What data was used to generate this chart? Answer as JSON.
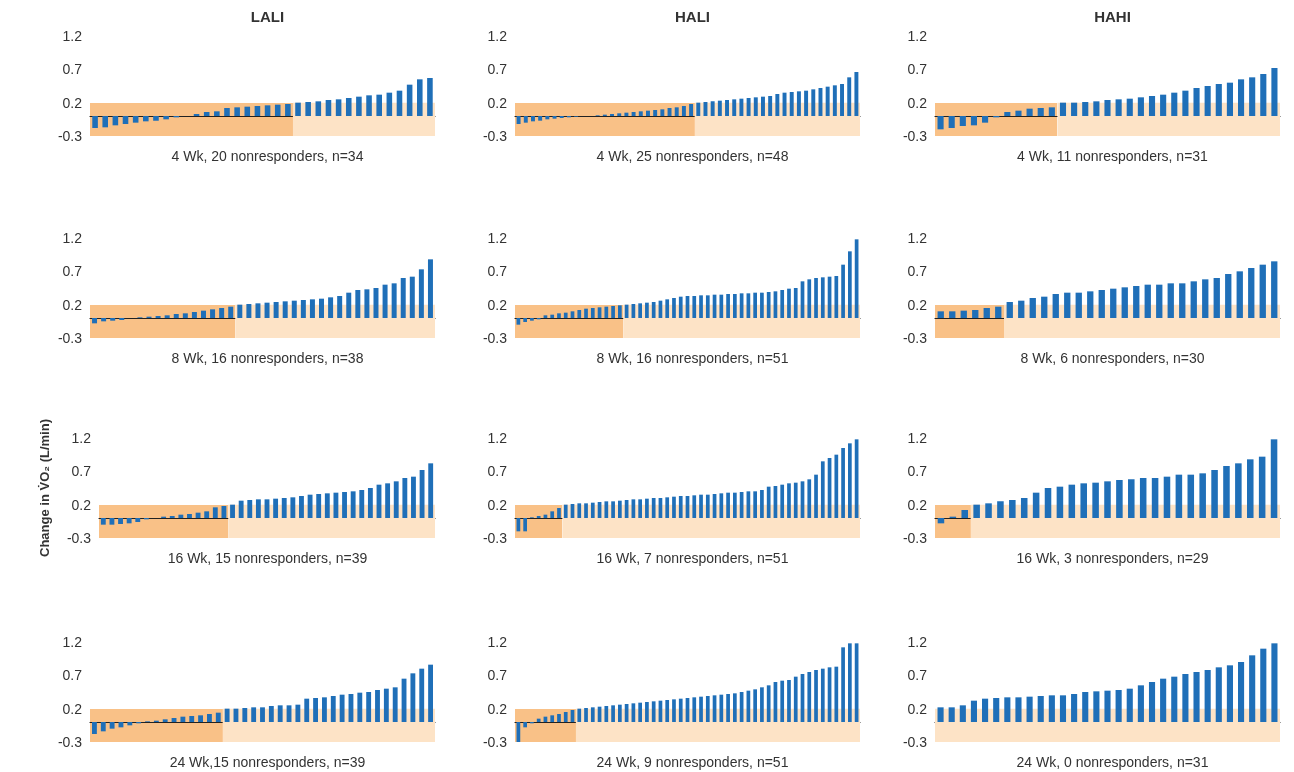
{
  "chart_data": [
    {
      "type": "bar",
      "title": "LALI",
      "xlabel": "4 Wk, 20 nonresponders, n=34",
      "categories": [
        null,
        null,
        null,
        null,
        null,
        null,
        null,
        null,
        null,
        null,
        null,
        null,
        null,
        null,
        null,
        null,
        null,
        null,
        null,
        null,
        null,
        null,
        null,
        null,
        null,
        null,
        null,
        null,
        null,
        null,
        null,
        null,
        null,
        null
      ],
      "ylim": [
        -0.3,
        1.2
      ],
      "yticks": [
        -0.3,
        0.2,
        0.7,
        1.2
      ],
      "tick_labels": "y",
      "grid": false,
      "color": "#1f6fb8",
      "values": [
        -0.18,
        -0.17,
        -0.14,
        -0.12,
        -0.1,
        -0.08,
        -0.07,
        -0.05,
        -0.02,
        0,
        0.03,
        0.06,
        0.07,
        0.12,
        0.13,
        0.14,
        0.15,
        0.16,
        0.17,
        0.18,
        0.2,
        0.21,
        0.22,
        0.24,
        0.25,
        0.27,
        0.29,
        0.31,
        0.32,
        0.35,
        0.38,
        0.47,
        0.55,
        0.57
      ],
      "bands": [
        {
          "axis": "y",
          "from": -0.3,
          "to": 0.2,
          "color": "#fde3c6"
        }
      ]
    },
    {
      "type": "bar",
      "title": "HALI",
      "xlabel": "4 Wk, 25 nonresponders, n=48",
      "categories": [
        null,
        null,
        null,
        null,
        null,
        null,
        null,
        null,
        null,
        null,
        null,
        null,
        null,
        null,
        null,
        null,
        null,
        null,
        null,
        null,
        null,
        null,
        null,
        null,
        null,
        null,
        null,
        null,
        null,
        null,
        null,
        null,
        null,
        null,
        null,
        null,
        null,
        null,
        null,
        null,
        null,
        null,
        null,
        null,
        null,
        null,
        null,
        null
      ],
      "ylim": [
        -0.3,
        1.2
      ],
      "yticks": [
        -0.3,
        0.2,
        0.7,
        1.2
      ],
      "tick_labels": "y",
      "grid": false,
      "color": "#1f6fb8",
      "values": [
        -0.12,
        -0.1,
        -0.08,
        -0.07,
        -0.05,
        -0.04,
        -0.03,
        -0.02,
        -0.01,
        0,
        0,
        0.01,
        0.02,
        0.03,
        0.04,
        0.05,
        0.06,
        0.07,
        0.08,
        0.09,
        0.1,
        0.12,
        0.13,
        0.15,
        0.18,
        0.2,
        0.21,
        0.22,
        0.23,
        0.24,
        0.25,
        0.26,
        0.27,
        0.28,
        0.29,
        0.3,
        0.33,
        0.35,
        0.36,
        0.37,
        0.38,
        0.4,
        0.42,
        0.44,
        0.46,
        0.48,
        0.58,
        0.66
      ],
      "bands": [
        {
          "axis": "y",
          "from": -0.3,
          "to": 0.2,
          "color": "#fde3c6"
        }
      ]
    },
    {
      "type": "bar",
      "title": "HAHI",
      "xlabel": "4 Wk, 11 nonresponders, n=31",
      "categories": [
        null,
        null,
        null,
        null,
        null,
        null,
        null,
        null,
        null,
        null,
        null,
        null,
        null,
        null,
        null,
        null,
        null,
        null,
        null,
        null,
        null,
        null,
        null,
        null,
        null,
        null,
        null,
        null,
        null,
        null,
        null
      ],
      "ylim": [
        -0.3,
        1.2
      ],
      "yticks": [
        -0.3,
        0.2,
        0.7,
        1.2
      ],
      "tick_labels": "y",
      "grid": false,
      "color": "#1f6fb8",
      "values": [
        -0.2,
        -0.18,
        -0.15,
        -0.14,
        -0.1,
        -0.02,
        0.06,
        0.08,
        0.11,
        0.12,
        0.13,
        0.2,
        0.2,
        0.21,
        0.22,
        0.24,
        0.25,
        0.26,
        0.28,
        0.3,
        0.32,
        0.35,
        0.38,
        0.42,
        0.45,
        0.48,
        0.5,
        0.55,
        0.58,
        0.63,
        0.72
      ],
      "bands": [
        {
          "axis": "y",
          "from": -0.3,
          "to": 0.2,
          "color": "#fde3c6"
        }
      ]
    },
    {
      "type": "bar",
      "xlabel": "8 Wk, 16 nonresponders, n=38",
      "categories": [
        null,
        null,
        null,
        null,
        null,
        null,
        null,
        null,
        null,
        null,
        null,
        null,
        null,
        null,
        null,
        null,
        null,
        null,
        null,
        null,
        null,
        null,
        null,
        null,
        null,
        null,
        null,
        null,
        null,
        null,
        null,
        null,
        null,
        null,
        null,
        null,
        null,
        null
      ],
      "ylim": [
        -0.3,
        1.2
      ],
      "yticks": [
        -0.3,
        0.2,
        0.7,
        1.2
      ],
      "tick_labels": "y",
      "grid": false,
      "color": "#1f6fb8",
      "values": [
        -0.08,
        -0.05,
        -0.04,
        -0.03,
        0,
        0.01,
        0.02,
        0.03,
        0.04,
        0.06,
        0.07,
        0.09,
        0.11,
        0.13,
        0.15,
        0.17,
        0.2,
        0.21,
        0.22,
        0.23,
        0.24,
        0.25,
        0.26,
        0.27,
        0.28,
        0.29,
        0.31,
        0.33,
        0.38,
        0.42,
        0.43,
        0.45,
        0.5,
        0.52,
        0.6,
        0.62,
        0.73,
        0.88
      ],
      "bands": [
        {
          "axis": "y",
          "from": -0.3,
          "to": 0.2,
          "color": "#fde3c6"
        }
      ]
    },
    {
      "type": "bar",
      "xlabel": "8 Wk, 16 nonresponders, n=51",
      "categories": [
        null,
        null,
        null,
        null,
        null,
        null,
        null,
        null,
        null,
        null,
        null,
        null,
        null,
        null,
        null,
        null,
        null,
        null,
        null,
        null,
        null,
        null,
        null,
        null,
        null,
        null,
        null,
        null,
        null,
        null,
        null,
        null,
        null,
        null,
        null,
        null,
        null,
        null,
        null,
        null,
        null,
        null,
        null,
        null,
        null,
        null,
        null,
        null,
        null,
        null,
        null
      ],
      "ylim": [
        -0.3,
        1.2
      ],
      "yticks": [
        -0.3,
        0.2,
        0.7,
        1.2
      ],
      "tick_labels": "y",
      "grid": false,
      "color": "#1f6fb8",
      "values": [
        -0.1,
        -0.06,
        -0.04,
        -0.02,
        0.04,
        0.05,
        0.07,
        0.08,
        0.1,
        0.12,
        0.14,
        0.15,
        0.16,
        0.17,
        0.18,
        0.19,
        0.2,
        0.21,
        0.22,
        0.23,
        0.24,
        0.26,
        0.28,
        0.3,
        0.32,
        0.33,
        0.33,
        0.34,
        0.34,
        0.35,
        0.35,
        0.36,
        0.36,
        0.37,
        0.37,
        0.38,
        0.38,
        0.39,
        0.4,
        0.42,
        0.44,
        0.45,
        0.55,
        0.58,
        0.6,
        0.61,
        0.62,
        0.63,
        0.8,
        1.0,
        1.18
      ],
      "bands": [
        {
          "axis": "y",
          "from": -0.3,
          "to": 0.2,
          "color": "#fde3c6"
        }
      ]
    },
    {
      "type": "bar",
      "xlabel": "8 Wk, 6 nonresponders, n=30",
      "categories": [
        null,
        null,
        null,
        null,
        null,
        null,
        null,
        null,
        null,
        null,
        null,
        null,
        null,
        null,
        null,
        null,
        null,
        null,
        null,
        null,
        null,
        null,
        null,
        null,
        null,
        null,
        null,
        null,
        null,
        null
      ],
      "ylim": [
        -0.3,
        1.2
      ],
      "yticks": [
        -0.3,
        0.2,
        0.7,
        1.2
      ],
      "tick_labels": "y",
      "grid": false,
      "color": "#1f6fb8",
      "values": [
        0.1,
        0.1,
        0.11,
        0.12,
        0.15,
        0.17,
        0.24,
        0.26,
        0.3,
        0.32,
        0.36,
        0.38,
        0.38,
        0.4,
        0.42,
        0.44,
        0.46,
        0.48,
        0.5,
        0.5,
        0.52,
        0.52,
        0.55,
        0.58,
        0.6,
        0.66,
        0.7,
        0.75,
        0.8,
        0.85
      ],
      "bands": [
        {
          "axis": "y",
          "from": -0.3,
          "to": 0.2,
          "color": "#fde3c6"
        }
      ]
    },
    {
      "type": "bar",
      "xlabel": "16 Wk, 15 nonresponders, n=39",
      "ylabel": "Change in V̇O₂ (L/min)",
      "categories": [
        null,
        null,
        null,
        null,
        null,
        null,
        null,
        null,
        null,
        null,
        null,
        null,
        null,
        null,
        null,
        null,
        null,
        null,
        null,
        null,
        null,
        null,
        null,
        null,
        null,
        null,
        null,
        null,
        null,
        null,
        null,
        null,
        null,
        null,
        null,
        null,
        null,
        null,
        null
      ],
      "ylim": [
        -0.3,
        1.2
      ],
      "yticks": [
        -0.3,
        0.2,
        0.7,
        1.2
      ],
      "tick_labels": "y",
      "grid": false,
      "color": "#1f6fb8",
      "values": [
        -0.1,
        -0.1,
        -0.09,
        -0.08,
        -0.06,
        -0.02,
        0,
        0.02,
        0.03,
        0.05,
        0.06,
        0.08,
        0.1,
        0.16,
        0.18,
        0.2,
        0.26,
        0.27,
        0.28,
        0.28,
        0.29,
        0.3,
        0.31,
        0.33,
        0.35,
        0.36,
        0.37,
        0.38,
        0.39,
        0.4,
        0.42,
        0.45,
        0.5,
        0.52,
        0.55,
        0.6,
        0.62,
        0.72,
        0.82
      ],
      "bands": [
        {
          "axis": "y",
          "from": -0.3,
          "to": 0.2,
          "color": "#fde3c6"
        }
      ]
    },
    {
      "type": "bar",
      "xlabel": "16 Wk, 7 nonresponders, n=51",
      "categories": [
        null,
        null,
        null,
        null,
        null,
        null,
        null,
        null,
        null,
        null,
        null,
        null,
        null,
        null,
        null,
        null,
        null,
        null,
        null,
        null,
        null,
        null,
        null,
        null,
        null,
        null,
        null,
        null,
        null,
        null,
        null,
        null,
        null,
        null,
        null,
        null,
        null,
        null,
        null,
        null,
        null,
        null,
        null,
        null,
        null,
        null,
        null,
        null,
        null,
        null,
        null
      ],
      "ylim": [
        -0.3,
        1.2
      ],
      "yticks": [
        -0.3,
        0.2,
        0.7,
        1.2
      ],
      "tick_labels": "y",
      "grid": false,
      "color": "#1f6fb8",
      "values": [
        -0.2,
        -0.2,
        0.01,
        0.03,
        0.05,
        0.1,
        0.15,
        0.2,
        0.21,
        0.22,
        0.22,
        0.23,
        0.24,
        0.25,
        0.25,
        0.26,
        0.27,
        0.28,
        0.28,
        0.29,
        0.3,
        0.3,
        0.31,
        0.32,
        0.33,
        0.33,
        0.34,
        0.35,
        0.35,
        0.36,
        0.37,
        0.38,
        0.38,
        0.39,
        0.4,
        0.4,
        0.42,
        0.47,
        0.48,
        0.5,
        0.52,
        0.53,
        0.55,
        0.58,
        0.65,
        0.85,
        0.9,
        0.95,
        1.05,
        1.12,
        1.18
      ],
      "bands": [
        {
          "axis": "y",
          "from": -0.3,
          "to": 0.2,
          "color": "#fde3c6"
        }
      ]
    },
    {
      "type": "bar",
      "xlabel": "16 Wk, 3 nonresponders, n=29",
      "categories": [
        null,
        null,
        null,
        null,
        null,
        null,
        null,
        null,
        null,
        null,
        null,
        null,
        null,
        null,
        null,
        null,
        null,
        null,
        null,
        null,
        null,
        null,
        null,
        null,
        null,
        null,
        null,
        null,
        null
      ],
      "ylim": [
        -0.3,
        1.2
      ],
      "yticks": [
        -0.3,
        0.2,
        0.7,
        1.2
      ],
      "tick_labels": "y",
      "grid": false,
      "color": "#1f6fb8",
      "values": [
        -0.08,
        0.02,
        0.12,
        0.2,
        0.22,
        0.25,
        0.27,
        0.3,
        0.38,
        0.45,
        0.47,
        0.5,
        0.52,
        0.53,
        0.55,
        0.57,
        0.58,
        0.6,
        0.6,
        0.62,
        0.65,
        0.65,
        0.67,
        0.72,
        0.78,
        0.82,
        0.88,
        0.92,
        1.18
      ],
      "bands": [
        {
          "axis": "y",
          "from": -0.3,
          "to": 0.2,
          "color": "#fde3c6"
        }
      ]
    },
    {
      "type": "bar",
      "xlabel": "24 Wk,15 nonresponders, n=39",
      "categories": [
        null,
        null,
        null,
        null,
        null,
        null,
        null,
        null,
        null,
        null,
        null,
        null,
        null,
        null,
        null,
        null,
        null,
        null,
        null,
        null,
        null,
        null,
        null,
        null,
        null,
        null,
        null,
        null,
        null,
        null,
        null,
        null,
        null,
        null,
        null,
        null,
        null,
        null,
        null
      ],
      "ylim": [
        -0.3,
        1.2
      ],
      "yticks": [
        -0.3,
        0.2,
        0.7,
        1.2
      ],
      "tick_labels": "y",
      "grid": false,
      "color": "#1f6fb8",
      "values": [
        -0.18,
        -0.14,
        -0.1,
        -0.08,
        -0.05,
        -0.02,
        0.01,
        0.02,
        0.04,
        0.06,
        0.08,
        0.09,
        0.1,
        0.12,
        0.14,
        0.2,
        0.2,
        0.21,
        0.22,
        0.22,
        0.24,
        0.25,
        0.25,
        0.26,
        0.35,
        0.36,
        0.37,
        0.39,
        0.41,
        0.42,
        0.44,
        0.45,
        0.48,
        0.5,
        0.52,
        0.65,
        0.73,
        0.8,
        0.86
      ],
      "bands": [
        {
          "axis": "y",
          "from": -0.3,
          "to": 0.2,
          "color": "#fde3c6"
        }
      ]
    },
    {
      "type": "bar",
      "xlabel": "24 Wk, 9 nonresponders, n=51",
      "categories": [
        null,
        null,
        null,
        null,
        null,
        null,
        null,
        null,
        null,
        null,
        null,
        null,
        null,
        null,
        null,
        null,
        null,
        null,
        null,
        null,
        null,
        null,
        null,
        null,
        null,
        null,
        null,
        null,
        null,
        null,
        null,
        null,
        null,
        null,
        null,
        null,
        null,
        null,
        null,
        null,
        null,
        null,
        null,
        null,
        null,
        null,
        null,
        null,
        null,
        null,
        null
      ],
      "ylim": [
        -0.3,
        1.2
      ],
      "yticks": [
        -0.3,
        0.2,
        0.7,
        1.2
      ],
      "tick_labels": "y",
      "grid": false,
      "color": "#1f6fb8",
      "values": [
        -0.3,
        -0.08,
        -0.02,
        0.05,
        0.08,
        0.1,
        0.12,
        0.15,
        0.18,
        0.2,
        0.21,
        0.22,
        0.23,
        0.24,
        0.25,
        0.26,
        0.27,
        0.28,
        0.29,
        0.3,
        0.31,
        0.32,
        0.33,
        0.34,
        0.35,
        0.36,
        0.37,
        0.38,
        0.39,
        0.4,
        0.41,
        0.42,
        0.43,
        0.45,
        0.47,
        0.49,
        0.52,
        0.55,
        0.6,
        0.62,
        0.63,
        0.68,
        0.72,
        0.75,
        0.78,
        0.8,
        0.82,
        0.83,
        1.12,
        1.18,
        1.18
      ],
      "bands": [
        {
          "axis": "y",
          "from": -0.3,
          "to": 0.2,
          "color": "#fde3c6"
        }
      ]
    },
    {
      "type": "bar",
      "xlabel": "24 Wk, 0 nonresponders, n=31",
      "categories": [
        null,
        null,
        null,
        null,
        null,
        null,
        null,
        null,
        null,
        null,
        null,
        null,
        null,
        null,
        null,
        null,
        null,
        null,
        null,
        null,
        null,
        null,
        null,
        null,
        null,
        null,
        null,
        null,
        null,
        null,
        null
      ],
      "ylim": [
        -0.3,
        1.2
      ],
      "yticks": [
        -0.3,
        0.2,
        0.7,
        1.2
      ],
      "tick_labels": "y",
      "grid": false,
      "color": "#1f6fb8",
      "values": [
        0.22,
        0.22,
        0.25,
        0.32,
        0.35,
        0.36,
        0.37,
        0.37,
        0.38,
        0.39,
        0.4,
        0.4,
        0.42,
        0.45,
        0.46,
        0.47,
        0.48,
        0.5,
        0.55,
        0.6,
        0.65,
        0.68,
        0.72,
        0.75,
        0.78,
        0.82,
        0.85,
        0.9,
        1.0,
        1.1,
        1.18
      ],
      "bands": [
        {
          "axis": "y",
          "from": -0.3,
          "to": 0.2,
          "color": "#fde3c6"
        }
      ]
    }
  ]
}
